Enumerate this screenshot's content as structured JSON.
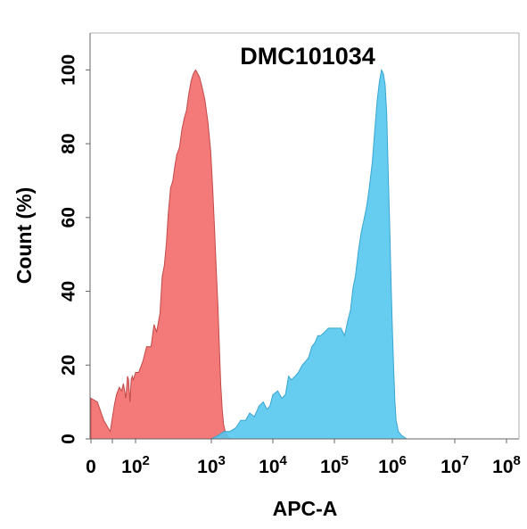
{
  "chart_data": {
    "type": "area",
    "title": "DMC101034",
    "xlabel": "APC-A",
    "ylabel": "Count  (%)",
    "xscale": "biexponential",
    "ylim": [
      0,
      110
    ],
    "y_ticks": [
      {
        "value": 0,
        "label": "0"
      },
      {
        "value": 20,
        "label": "20"
      },
      {
        "value": 40,
        "label": "40"
      },
      {
        "value": 60,
        "label": "60"
      },
      {
        "value": 80,
        "label": "80"
      },
      {
        "value": 100,
        "label": "100"
      }
    ],
    "x_ticks": [
      {
        "value": 0,
        "base": "0",
        "exp": ""
      },
      {
        "value": 10,
        "base": "",
        "exp": ""
      },
      {
        "value": 100,
        "base": "10",
        "exp": "2"
      },
      {
        "value": 1000,
        "base": "10",
        "exp": "3"
      },
      {
        "value": 10000,
        "base": "10",
        "exp": "4"
      },
      {
        "value": 100000,
        "base": "10",
        "exp": "5"
      },
      {
        "value": 1000000,
        "base": "10",
        "exp": "6"
      },
      {
        "value": 10000000,
        "base": "10",
        "exp": "7"
      },
      {
        "value": 100000000,
        "base": "10",
        "exp": "8"
      }
    ],
    "grid": false,
    "legend": "none",
    "series": [
      {
        "color": "#f36b6b",
        "stroke": "#c24a4a",
        "points": [
          [
            0,
            11
          ],
          [
            3,
            10
          ],
          [
            6,
            5
          ],
          [
            9,
            2
          ],
          [
            12,
            9
          ],
          [
            15,
            12
          ],
          [
            20,
            14
          ],
          [
            25,
            13
          ],
          [
            30,
            15
          ],
          [
            38,
            11
          ],
          [
            45,
            17
          ],
          [
            50,
            16
          ],
          [
            58,
            10
          ],
          [
            65,
            16
          ],
          [
            72,
            17
          ],
          [
            80,
            16
          ],
          [
            90,
            17
          ],
          [
            100,
            18
          ],
          [
            110,
            18
          ],
          [
            125,
            21
          ],
          [
            140,
            25
          ],
          [
            160,
            25
          ],
          [
            175,
            31
          ],
          [
            190,
            29
          ],
          [
            210,
            34
          ],
          [
            225,
            44
          ],
          [
            240,
            47
          ],
          [
            255,
            53
          ],
          [
            270,
            61
          ],
          [
            290,
            68
          ],
          [
            310,
            70
          ],
          [
            330,
            74
          ],
          [
            350,
            77
          ],
          [
            380,
            79
          ],
          [
            410,
            84
          ],
          [
            440,
            87
          ],
          [
            470,
            89
          ],
          [
            500,
            93
          ],
          [
            540,
            97
          ],
          [
            580,
            99
          ],
          [
            620,
            100
          ],
          [
            660,
            99
          ],
          [
            700,
            98
          ],
          [
            760,
            95
          ],
          [
            820,
            92
          ],
          [
            900,
            86
          ],
          [
            980,
            78
          ],
          [
            1050,
            68
          ],
          [
            1120,
            58
          ],
          [
            1200,
            46
          ],
          [
            1280,
            36
          ],
          [
            1350,
            25
          ],
          [
            1420,
            15
          ],
          [
            1500,
            8
          ],
          [
            1580,
            4
          ],
          [
            1680,
            2
          ],
          [
            1800,
            1
          ],
          [
            2000,
            0
          ]
        ]
      },
      {
        "color": "#55c6ee",
        "stroke": "#3aa6d0",
        "points": [
          [
            1000,
            0
          ],
          [
            1300,
            1
          ],
          [
            1600,
            2
          ],
          [
            2000,
            2
          ],
          [
            2500,
            3
          ],
          [
            3000,
            5
          ],
          [
            3600,
            5
          ],
          [
            4200,
            7
          ],
          [
            5000,
            6
          ],
          [
            6000,
            9
          ],
          [
            7000,
            10
          ],
          [
            8000,
            8
          ],
          [
            9000,
            9
          ],
          [
            10000,
            12
          ],
          [
            12000,
            13
          ],
          [
            14000,
            11
          ],
          [
            16000,
            12
          ],
          [
            18000,
            17
          ],
          [
            20000,
            16
          ],
          [
            23000,
            17
          ],
          [
            26000,
            18
          ],
          [
            30000,
            20
          ],
          [
            34000,
            21
          ],
          [
            38000,
            22
          ],
          [
            43000,
            25
          ],
          [
            48000,
            26
          ],
          [
            54000,
            28
          ],
          [
            60000,
            28
          ],
          [
            70000,
            29
          ],
          [
            80000,
            30
          ],
          [
            90000,
            30
          ],
          [
            100000,
            30
          ],
          [
            115000,
            30
          ],
          [
            130000,
            30
          ],
          [
            150000,
            28
          ],
          [
            170000,
            32
          ],
          [
            190000,
            35
          ],
          [
            210000,
            41
          ],
          [
            230000,
            44
          ],
          [
            260000,
            51
          ],
          [
            290000,
            56
          ],
          [
            320000,
            59
          ],
          [
            360000,
            63
          ],
          [
            400000,
            68
          ],
          [
            450000,
            75
          ],
          [
            500000,
            84
          ],
          [
            550000,
            92
          ],
          [
            600000,
            97
          ],
          [
            650000,
            100
          ],
          [
            700000,
            99
          ],
          [
            750000,
            96
          ],
          [
            800000,
            88
          ],
          [
            850000,
            72
          ],
          [
            900000,
            58
          ],
          [
            950000,
            42
          ],
          [
            1000000,
            30
          ],
          [
            1050000,
            19
          ],
          [
            1100000,
            10
          ],
          [
            1150000,
            5
          ],
          [
            1250000,
            2
          ],
          [
            1400000,
            1
          ],
          [
            1700000,
            0
          ]
        ]
      }
    ]
  }
}
